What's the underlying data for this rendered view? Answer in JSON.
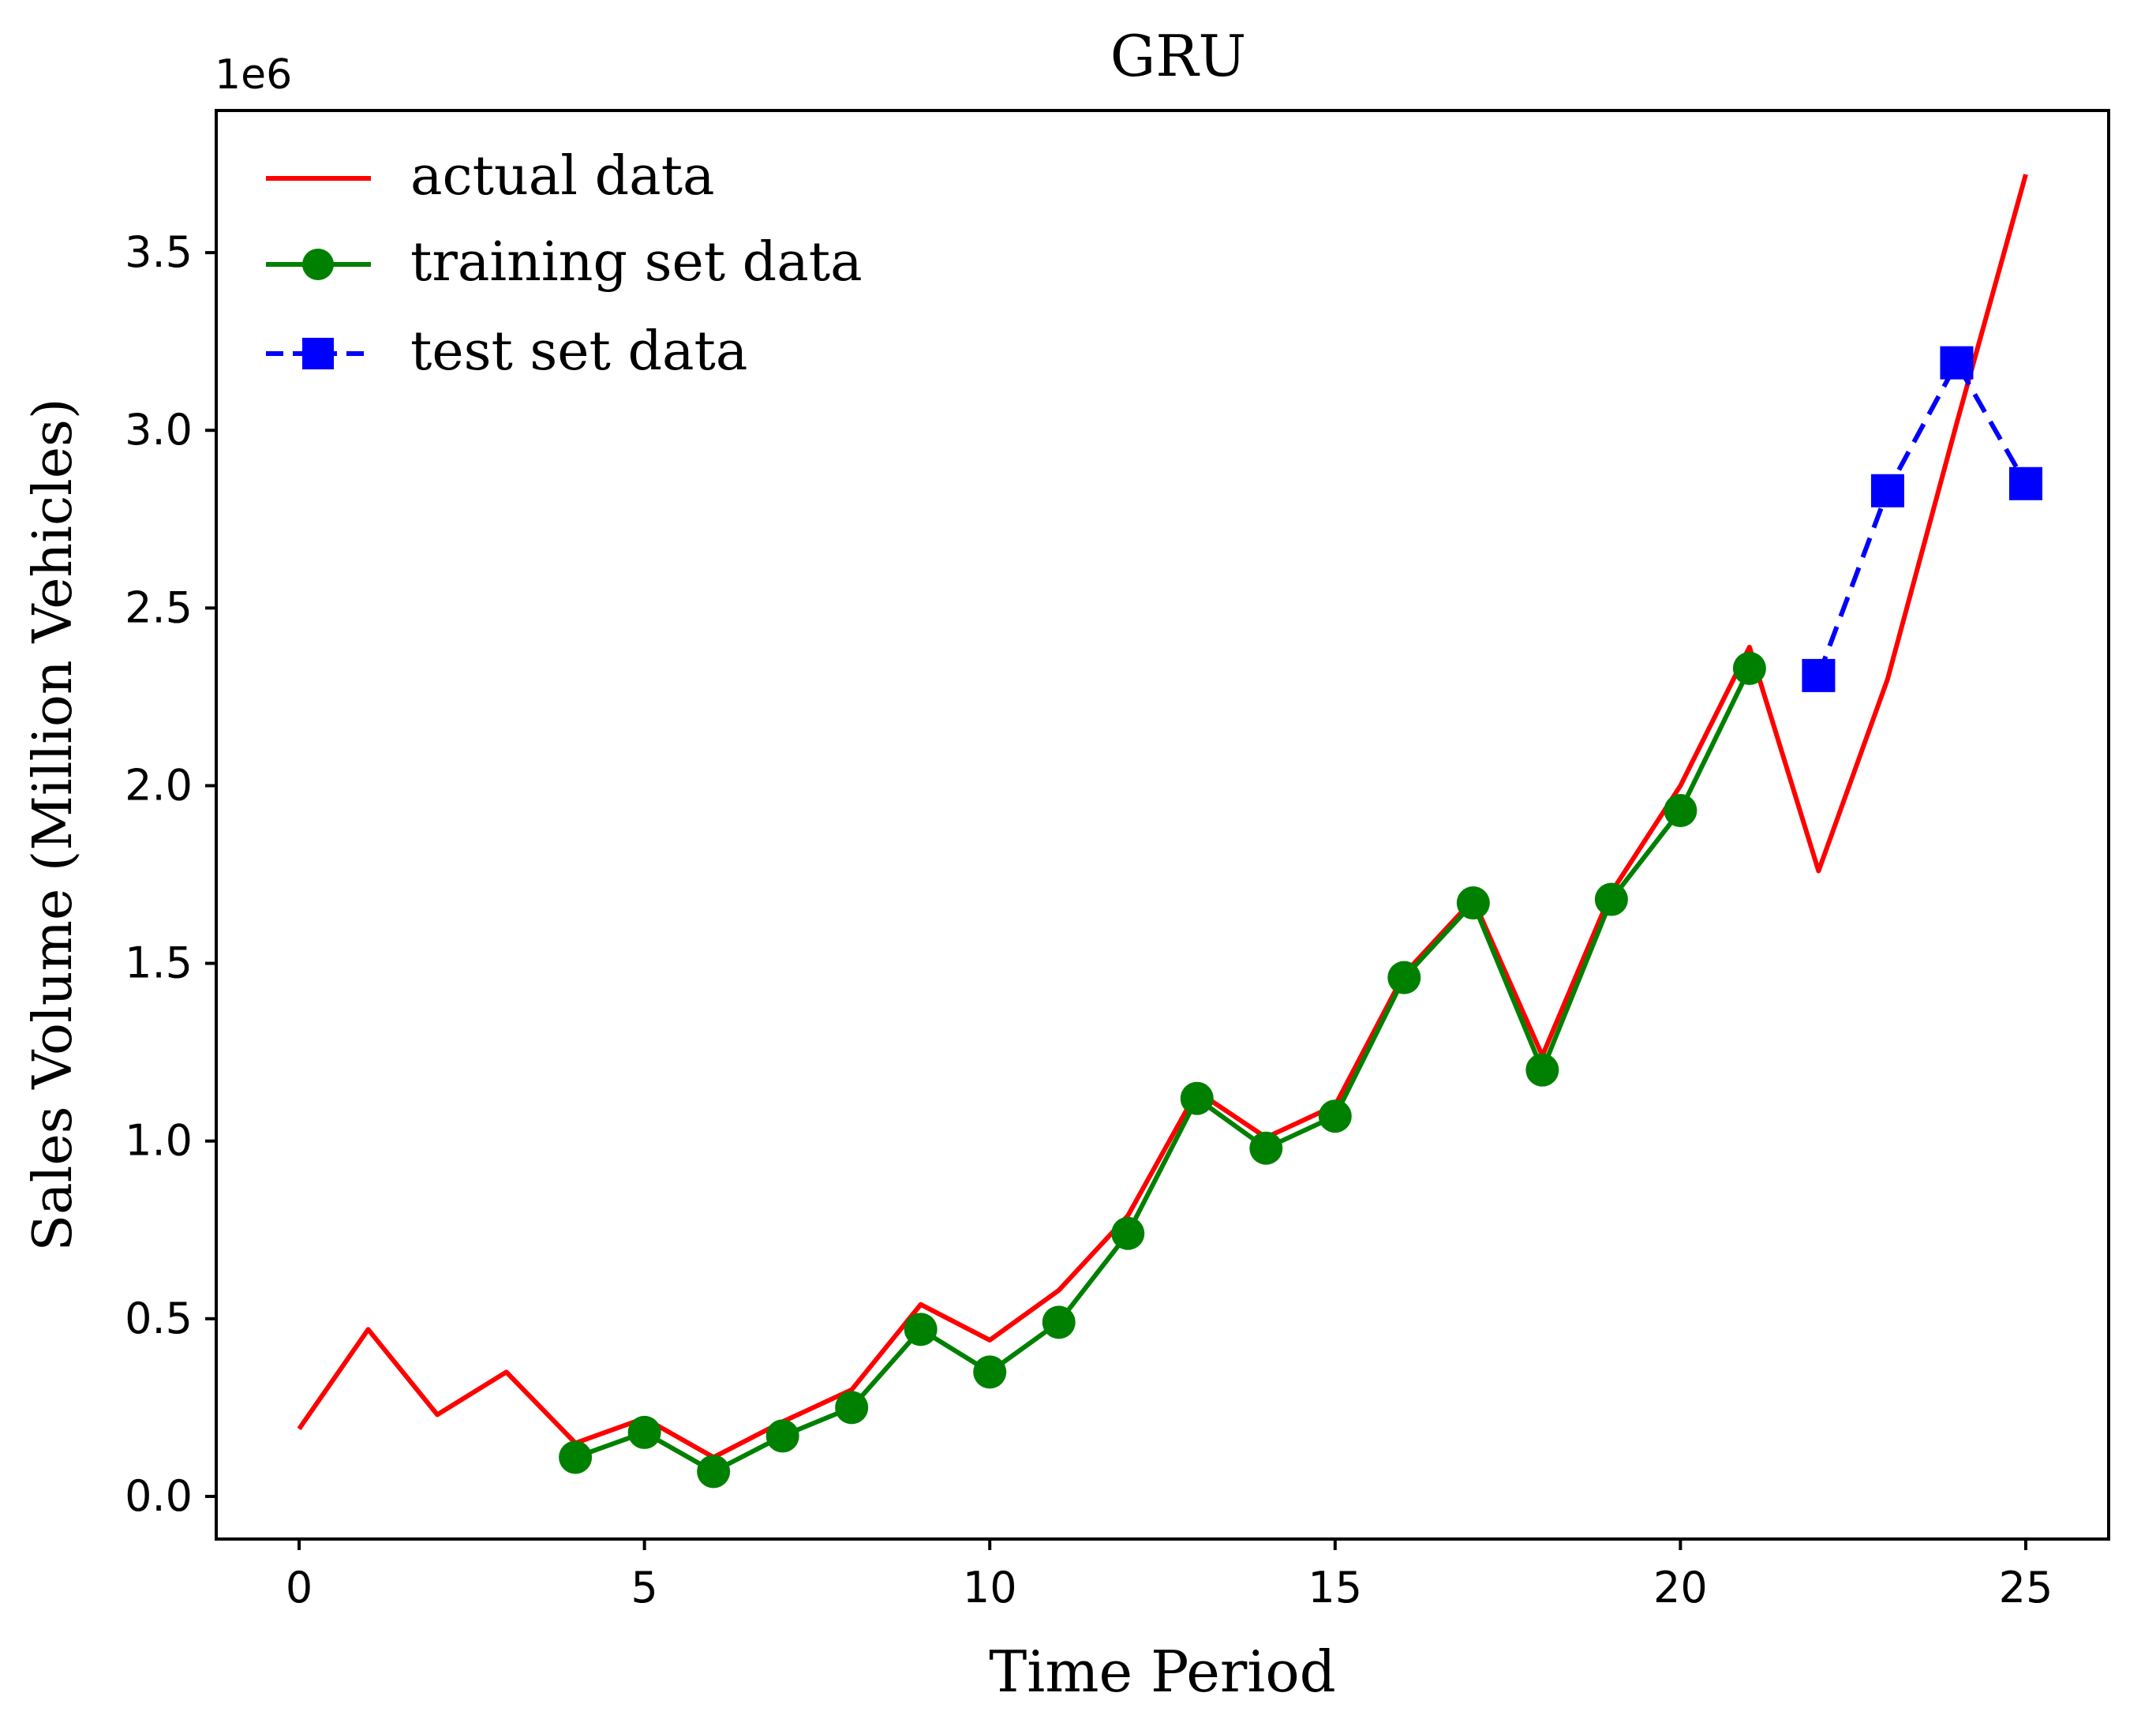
{
  "chart_data": {
    "type": "line",
    "title": "GRU",
    "xlabel": "Time Period",
    "ylabel": "Sales Volume (Million Vehicles)",
    "y_offset_label": "1e6",
    "xlim": [
      -1.2,
      26.2
    ],
    "ylim": [
      -0.12,
      3.9
    ],
    "x_ticks": [
      0,
      5,
      10,
      15,
      20,
      25
    ],
    "y_ticks": [
      0.0,
      0.5,
      1.0,
      1.5,
      2.0,
      2.5,
      3.0,
      3.5
    ],
    "y_tick_labels": [
      "0.0",
      "0.5",
      "1.0",
      "1.5",
      "2.0",
      "2.5",
      "3.0",
      "3.5"
    ],
    "grid": false,
    "legend_position": "top-left",
    "series": [
      {
        "name": "actual data",
        "color": "#ff0000",
        "style": "solid",
        "marker": "none",
        "x": [
          0,
          1,
          2,
          3,
          4,
          5,
          6,
          7,
          8,
          9,
          10,
          11,
          12,
          13,
          14,
          15,
          16,
          17,
          18,
          19,
          20,
          21,
          22,
          23,
          24,
          25
        ],
        "y": [
          0.19,
          0.47,
          0.23,
          0.35,
          0.15,
          0.22,
          0.11,
          0.21,
          0.3,
          0.54,
          0.44,
          0.58,
          0.79,
          1.14,
          1.01,
          1.1,
          1.47,
          1.68,
          1.24,
          1.7,
          2.0,
          2.39,
          1.76,
          2.3,
          3.02,
          3.72
        ]
      },
      {
        "name": "training set data",
        "color": "#008000",
        "style": "solid",
        "marker": "circle",
        "x": [
          4,
          5,
          6,
          7,
          8,
          9,
          10,
          11,
          12,
          13,
          14,
          15,
          16,
          17,
          18,
          19,
          20,
          21
        ],
        "y": [
          0.11,
          0.18,
          0.07,
          0.17,
          0.25,
          0.47,
          0.35,
          0.49,
          0.74,
          1.12,
          0.98,
          1.07,
          1.46,
          1.67,
          1.2,
          1.68,
          1.93,
          2.33
        ]
      },
      {
        "name": "test set data",
        "color": "#0000ff",
        "style": "dashed",
        "marker": "square",
        "x": [
          22,
          23,
          24,
          25
        ],
        "y": [
          2.31,
          2.83,
          3.19,
          2.85
        ]
      }
    ]
  }
}
